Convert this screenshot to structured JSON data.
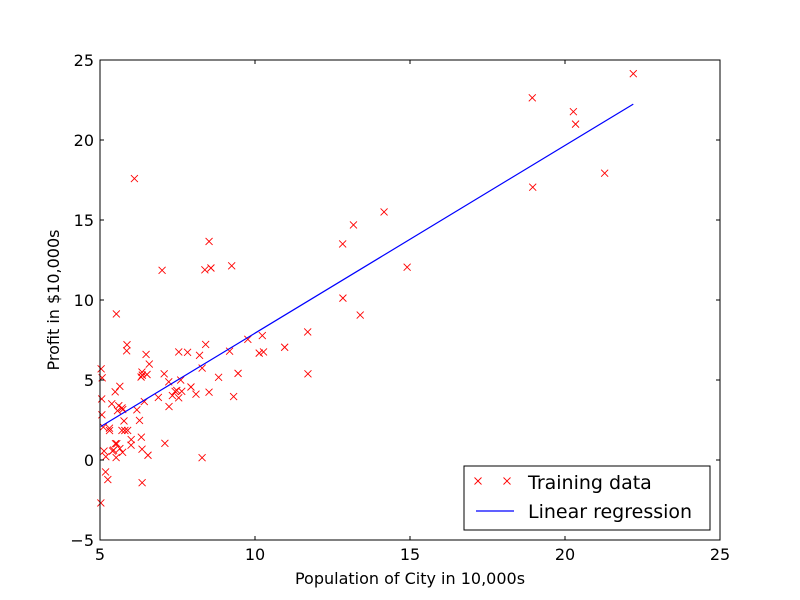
{
  "chart_data": {
    "type": "scatter",
    "xlabel": "Population of City in 10,000s",
    "ylabel": "Profit in $10,000s",
    "xlim": [
      5,
      25
    ],
    "ylim": [
      -5,
      25
    ],
    "xticks": [
      "5",
      "10",
      "15",
      "20",
      "25"
    ],
    "yticks": [
      "−5",
      "0",
      "5",
      "10",
      "15",
      "20",
      "25"
    ],
    "grid": false,
    "legend_position": "bottom-right",
    "series": [
      {
        "name": "Training data",
        "kind": "scatter",
        "marker": "x",
        "color": "#ff0000",
        "x": [
          6.1101,
          5.5277,
          8.5186,
          7.0032,
          5.8598,
          8.3829,
          7.4764,
          8.5781,
          6.4862,
          5.0546,
          5.7107,
          14.164,
          5.734,
          8.4084,
          5.6407,
          5.3794,
          6.3654,
          5.1301,
          6.4296,
          7.0708,
          6.1891,
          20.27,
          5.4901,
          6.3261,
          5.5649,
          18.945,
          12.828,
          10.957,
          13.176,
          22.203,
          5.2524,
          6.5894,
          9.2482,
          5.8918,
          8.2111,
          7.9334,
          8.0959,
          5.6063,
          12.836,
          6.3534,
          5.4069,
          6.8825,
          11.708,
          5.7737,
          7.8247,
          7.0931,
          5.0702,
          5.8014,
          11.7,
          5.5416,
          7.5402,
          5.3077,
          7.4239,
          7.6031,
          6.3328,
          6.3589,
          6.2742,
          5.6397,
          9.3102,
          9.4536,
          8.8254,
          5.1793,
          21.279,
          14.908,
          18.959,
          7.2182,
          8.2951,
          10.236,
          5.4994,
          20.341,
          10.136,
          7.3345,
          6.0062,
          7.2259,
          5.0269,
          6.5479,
          7.5386,
          5.0365,
          10.274,
          5.1077,
          5.7292,
          5.1884,
          6.3557,
          9.7687,
          6.5159,
          8.5172,
          9.1802,
          6.002,
          5.5204,
          5.0594,
          5.7077,
          7.6366,
          5.8707,
          5.3054,
          8.2934,
          13.394,
          5.4369
        ],
        "y": [
          17.592,
          9.1302,
          13.662,
          11.854,
          6.8233,
          11.886,
          4.3483,
          12.0,
          6.5987,
          3.8166,
          3.2522,
          15.505,
          3.1551,
          7.2258,
          0.71618,
          3.5129,
          5.3048,
          0.56077,
          3.6518,
          5.3893,
          3.1386,
          21.767,
          4.263,
          5.1875,
          3.0825,
          22.638,
          13.501,
          7.0467,
          14.692,
          24.147,
          -1.22,
          5.9966,
          12.134,
          1.8495,
          6.5426,
          4.5623,
          4.1164,
          3.3928,
          10.117,
          5.4974,
          0.55657,
          3.9115,
          5.3854,
          2.4406,
          6.7318,
          1.0463,
          5.1337,
          1.844,
          8.0043,
          1.0179,
          6.7504,
          1.8396,
          4.2885,
          4.9981,
          1.4233,
          -1.4211,
          2.4756,
          4.6042,
          3.9624,
          5.4141,
          5.1694,
          -0.74279,
          17.929,
          12.054,
          17.054,
          4.8852,
          5.7442,
          7.7754,
          1.0173,
          20.992,
          6.6799,
          4.0259,
          1.2784,
          3.3411,
          -2.6807,
          0.29678,
          3.8845,
          5.7014,
          6.7526,
          2.0576,
          0.47953,
          0.20421,
          0.67861,
          7.5435,
          5.3436,
          4.2415,
          6.7981,
          0.92695,
          0.152,
          2.8214,
          1.8451,
          4.2959,
          7.2029,
          1.9869,
          0.14454,
          9.0551,
          0.61705
        ]
      },
      {
        "name": "Linear regression",
        "kind": "line",
        "color": "#0000ff",
        "x": [
          5.0269,
          22.203
        ],
        "y": [
          2.0942,
          22.2444
        ]
      }
    ]
  }
}
